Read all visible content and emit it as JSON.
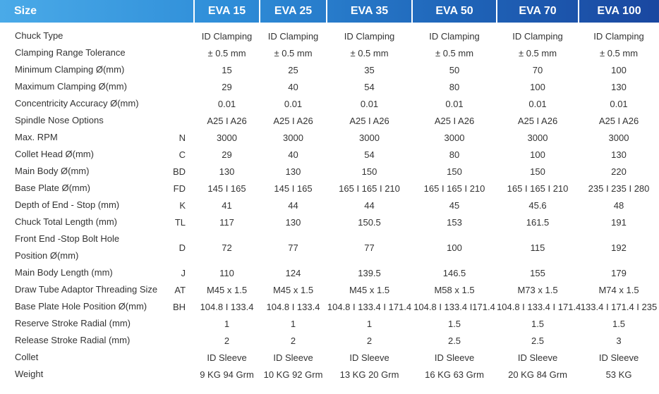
{
  "header": {
    "size": "Size",
    "models": [
      "EVA 15",
      "EVA 25",
      "EVA 35",
      "EVA 50",
      "EVA 70",
      "EVA 100"
    ]
  },
  "rows": [
    {
      "label": "Chuck Type",
      "values": [
        "ID Clamping",
        "ID Clamping",
        "ID Clamping",
        "ID Clamping",
        "ID Clamping",
        "ID Clamping"
      ]
    },
    {
      "label": "Clamping Range Tolerance",
      "values": [
        "± 0.5 mm",
        "± 0.5 mm",
        "± 0.5 mm",
        "± 0.5 mm",
        "± 0.5 mm",
        "± 0.5 mm"
      ]
    },
    {
      "label": "Minimum Clamping Ø(mm)",
      "values": [
        "15",
        "25",
        "35",
        "50",
        "70",
        "100"
      ]
    },
    {
      "label": "Maximum Clamping Ø(mm)",
      "values": [
        "29",
        "40",
        "54",
        "80",
        "100",
        "130"
      ]
    },
    {
      "label": "Concentricity Accuracy Ø(mm)",
      "values": [
        "0.01",
        "0.01",
        "0.01",
        "0.01",
        "0.01",
        "0.01"
      ]
    },
    {
      "label": "Spindle Nose Options",
      "values": [
        "A25 I A26",
        "A25 I A26",
        "A25 I A26",
        "A25 I A26",
        "A25 I A26",
        "A25 I A26"
      ]
    },
    {
      "label": "Max. RPM",
      "code": "N",
      "values": [
        "3000",
        "3000",
        "3000",
        "3000",
        "3000",
        "3000"
      ]
    },
    {
      "label": "Collet Head Ø(mm)",
      "code": "C",
      "values": [
        "29",
        "40",
        "54",
        "80",
        "100",
        "130"
      ]
    },
    {
      "label": "Main Body Ø(mm)",
      "code": "BD",
      "values": [
        "130",
        "130",
        "150",
        "150",
        "150",
        "220"
      ]
    },
    {
      "label": "Base Plate Ø(mm)",
      "code": "FD",
      "values": [
        "145 I 165",
        "145 I 165",
        "165 I 165 I 210",
        "165 I 165 I 210",
        "165 I 165 I 210",
        "235 I 235 I 280"
      ]
    },
    {
      "label": "Depth of End - Stop (mm)",
      "code": "K",
      "values": [
        "41",
        "44",
        "44",
        "45",
        "45.6",
        "48"
      ]
    },
    {
      "label": "Chuck Total Length (mm)",
      "code": "TL",
      "values": [
        "117",
        "130",
        "150.5",
        "153",
        "161.5",
        "191"
      ]
    },
    {
      "label": "Front End -Stop Bolt Hole\nPosition Ø(mm)",
      "code": "D",
      "values": [
        "72",
        "77",
        "77",
        "100",
        "115",
        "192"
      ]
    },
    {
      "label": "Main Body Length (mm)",
      "code": "J",
      "values": [
        "110",
        "124",
        "139.5",
        "146.5",
        "155",
        "179"
      ]
    },
    {
      "label": "Draw Tube Adaptor Threading Size",
      "code": "AT",
      "values": [
        "M45 x 1.5",
        "M45 x 1.5",
        "M45 x 1.5",
        "M58 x 1.5",
        "M73 x 1.5",
        "M74 x 1.5"
      ]
    },
    {
      "label": "Base Plate Hole Position Ø(mm)",
      "code": "BH",
      "values": [
        "104.8 I 133.4",
        "104.8 I 133.4",
        "104.8 I 133.4 I 171.4",
        "104.8 I 133.4 I171.4",
        "104.8 I 133.4 I 171.4",
        "133.4 I 171.4 I 235"
      ]
    },
    {
      "label": "Reserve Stroke Radial (mm)",
      "values": [
        "1",
        "1",
        "1",
        "1.5",
        "1.5",
        "1.5"
      ]
    },
    {
      "label": "Release Stroke Radial (mm)",
      "values": [
        "2",
        "2",
        "2",
        "2.5",
        "2.5",
        "3"
      ]
    },
    {
      "label": "Collet",
      "values": [
        "ID Sleeve",
        "ID Sleeve",
        "ID Sleeve",
        "ID Sleeve",
        "ID Sleeve",
        "ID Sleeve"
      ]
    },
    {
      "label": "Weight",
      "values": [
        "9 KG 94 Grm",
        "10 KG 92 Grm",
        "13 KG 20 Grm",
        "16 KG 63 Grm",
        "20 KG 84 Grm",
        "53 KG"
      ]
    }
  ]
}
